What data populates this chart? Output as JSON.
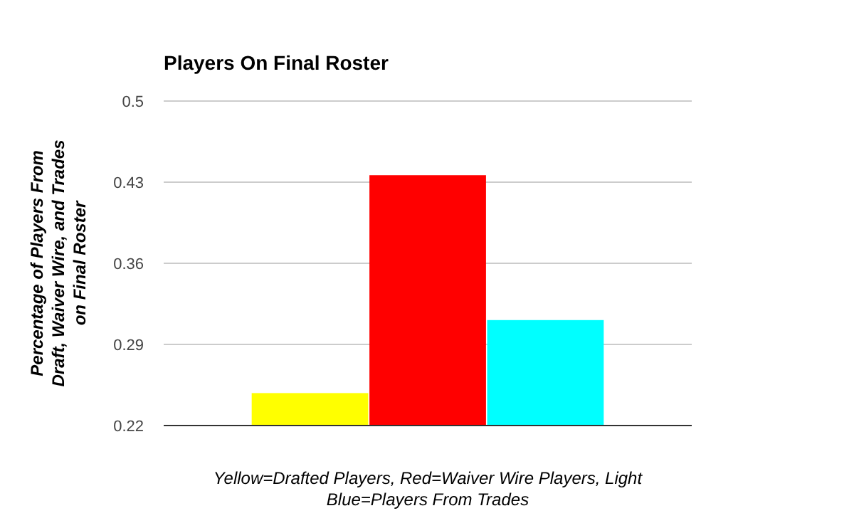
{
  "chart_data": {
    "type": "bar",
    "title": "Players On Final Roster",
    "xlabel": "Yellow=Drafted Players, Red=Waiver Wire Players, Light Blue=Players From Trades",
    "ylabel": "Percentage of Players From Draft, Waiver Wire, and Trades on Final Roster",
    "categories": [
      null
    ],
    "series": [
      {
        "color": "#ffff00",
        "values": [
          0.248
        ]
      },
      {
        "color": "#ff0000",
        "values": [
          0.436
        ]
      },
      {
        "color": "#00ffff",
        "values": [
          0.311
        ]
      }
    ],
    "ylim": [
      0.22,
      0.5
    ],
    "yticks": [
      0.22,
      0.29,
      0.36,
      0.43,
      0.5
    ],
    "grid": true
  }
}
